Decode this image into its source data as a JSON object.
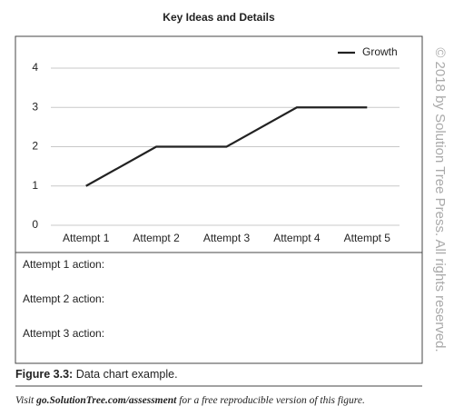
{
  "chart_data": {
    "type": "line",
    "title": "Key Ideas and Details",
    "categories": [
      "Attempt 1",
      "Attempt 2",
      "Attempt 3",
      "Attempt 4",
      "Attempt 5"
    ],
    "series": [
      {
        "name": "Growth",
        "color": "#222222",
        "values": [
          1,
          2,
          2,
          3,
          3
        ]
      }
    ],
    "ylim": [
      0,
      4
    ],
    "yticks": [
      0,
      1,
      2,
      3,
      4
    ],
    "grid": true,
    "legend": "top-right"
  },
  "rows": [
    "Attempt 1 action:",
    "Attempt 2 action:",
    "Attempt 3 action:"
  ],
  "caption": {
    "label": "Figure 3.3:",
    "text": "Data chart example."
  },
  "note": {
    "before": "Visit ",
    "link": "go.SolutionTree.com/assessment",
    "after": " for a free reproducible version of this figure."
  },
  "copyright": "© 2018 by Solution Tree Press. All rights reserved."
}
